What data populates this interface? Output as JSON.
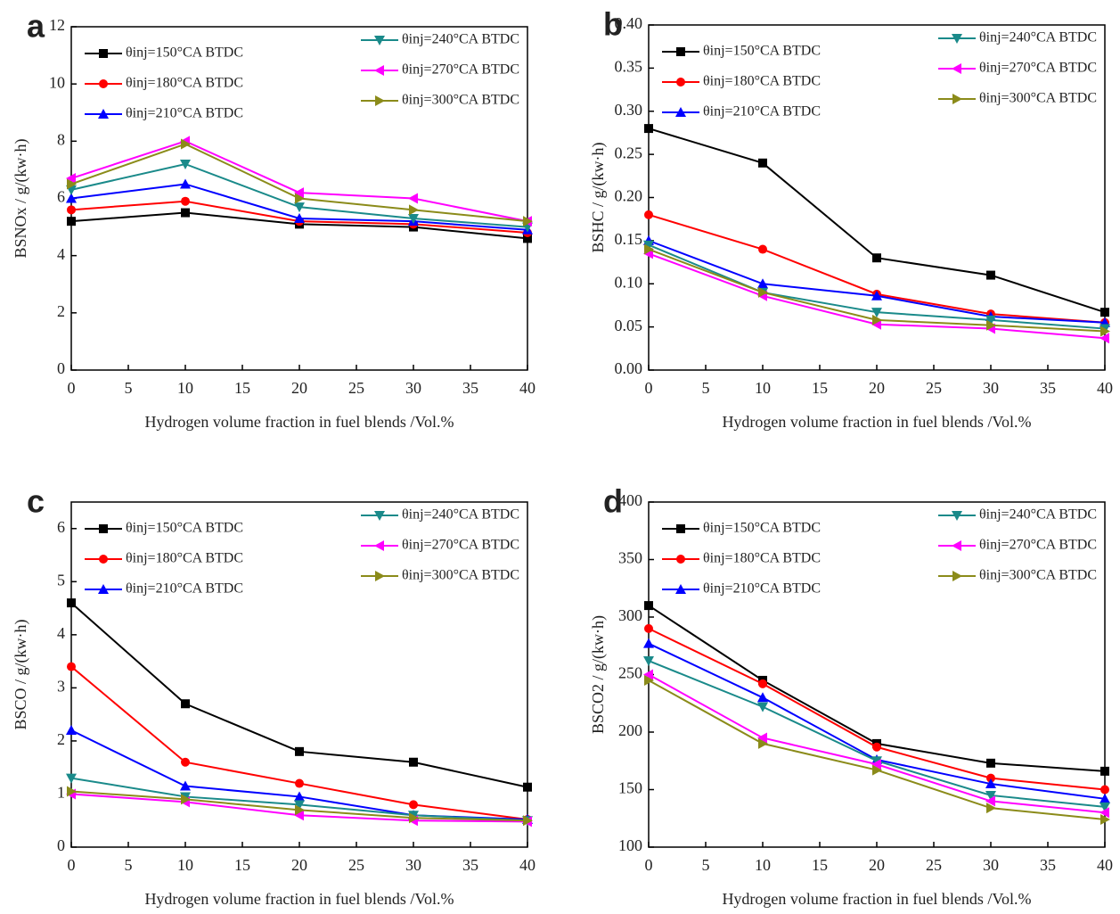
{
  "chart_data": [
    {
      "type": "line",
      "label": "a",
      "ylabel": "BSNOx / g/(kw·h)",
      "xlabel": "Hydrogen volume fraction in fuel blends /Vol.%",
      "x": [
        0,
        10,
        20,
        30,
        40
      ],
      "xlim": [
        0,
        40
      ],
      "xticks": [
        0,
        5,
        10,
        15,
        20,
        25,
        30,
        35,
        40
      ],
      "ylim": [
        0,
        12
      ],
      "yticks": [
        0,
        2,
        4,
        6,
        8,
        10,
        12
      ],
      "series": [
        {
          "name": "θinj=150°CA BTDC",
          "color": "#000000",
          "marker": "square",
          "values": [
            5.2,
            5.5,
            5.1,
            5.0,
            4.6
          ]
        },
        {
          "name": "θinj=180°CA BTDC",
          "color": "#ff0000",
          "marker": "circle",
          "values": [
            5.6,
            5.9,
            5.2,
            5.1,
            4.8
          ]
        },
        {
          "name": "θinj=210°CA BTDC",
          "color": "#0000ff",
          "marker": "up",
          "values": [
            6.0,
            6.5,
            5.3,
            5.2,
            4.9
          ]
        },
        {
          "name": "θinj=240°CA BTDC",
          "color": "#1a8a8a",
          "marker": "down",
          "values": [
            6.3,
            7.2,
            5.7,
            5.3,
            5.0
          ]
        },
        {
          "name": "θinj=270°CA BTDC",
          "color": "#ff00ff",
          "marker": "left",
          "values": [
            6.7,
            8.0,
            6.2,
            6.0,
            5.2
          ]
        },
        {
          "name": "θinj=300°CA BTDC",
          "color": "#8b8b1a",
          "marker": "right",
          "values": [
            6.5,
            7.9,
            6.0,
            5.6,
            5.2
          ]
        }
      ]
    },
    {
      "type": "line",
      "label": "b",
      "ylabel": "BSHC / g/(kw·h)",
      "xlabel": "Hydrogen volume fraction in fuel blends /Vol.%",
      "x": [
        0,
        10,
        20,
        30,
        40
      ],
      "xlim": [
        0,
        40
      ],
      "xticks": [
        0,
        5,
        10,
        15,
        20,
        25,
        30,
        35,
        40
      ],
      "ylim": [
        0,
        0.4
      ],
      "yticks": [
        {
          "value": 0,
          "label": "0.00"
        },
        0.05,
        {
          "value": 0.1,
          "label": "0.10"
        },
        0.15,
        {
          "value": 0.2,
          "label": "0.20"
        },
        0.25,
        {
          "value": 0.3,
          "label": "0.30"
        },
        0.35,
        {
          "value": 0.4,
          "label": "0.40"
        }
      ],
      "series": [
        {
          "name": "θinj=150°CA BTDC",
          "color": "#000000",
          "marker": "square",
          "values": [
            0.28,
            0.24,
            0.13,
            0.11,
            0.067
          ]
        },
        {
          "name": "θinj=180°CA BTDC",
          "color": "#ff0000",
          "marker": "circle",
          "values": [
            0.18,
            0.14,
            0.088,
            0.065,
            0.055
          ]
        },
        {
          "name": "θinj=210°CA BTDC",
          "color": "#0000ff",
          "marker": "up",
          "values": [
            0.15,
            0.1,
            0.086,
            0.062,
            0.055
          ]
        },
        {
          "name": "θinj=240°CA BTDC",
          "color": "#1a8a8a",
          "marker": "down",
          "values": [
            0.145,
            0.09,
            0.067,
            0.058,
            0.048
          ]
        },
        {
          "name": "θinj=270°CA BTDC",
          "color": "#ff00ff",
          "marker": "left",
          "values": [
            0.135,
            0.086,
            0.053,
            0.048,
            0.037
          ]
        },
        {
          "name": "θinj=300°CA BTDC",
          "color": "#8b8b1a",
          "marker": "right",
          "values": [
            0.14,
            0.09,
            0.058,
            0.052,
            0.045
          ]
        }
      ]
    },
    {
      "type": "line",
      "label": "c",
      "ylabel": "BSCO / g/(kw·h)",
      "xlabel": "Hydrogen volume fraction in fuel blends /Vol.%",
      "x": [
        0,
        10,
        20,
        30,
        40
      ],
      "xlim": [
        0,
        40
      ],
      "xticks": [
        0,
        5,
        10,
        15,
        20,
        25,
        30,
        35,
        40
      ],
      "ylim": [
        0,
        6.5
      ],
      "yticks": [
        0,
        1,
        2,
        3,
        4,
        5,
        6
      ],
      "series": [
        {
          "name": "θinj=150°CA BTDC",
          "color": "#000000",
          "marker": "square",
          "values": [
            4.6,
            2.7,
            1.8,
            1.6,
            1.13
          ]
        },
        {
          "name": "θinj=180°CA BTDC",
          "color": "#ff0000",
          "marker": "circle",
          "values": [
            3.4,
            1.6,
            1.2,
            0.8,
            0.52
          ]
        },
        {
          "name": "θinj=210°CA BTDC",
          "color": "#0000ff",
          "marker": "up",
          "values": [
            2.2,
            1.15,
            0.95,
            0.6,
            0.52
          ]
        },
        {
          "name": "θinj=240°CA BTDC",
          "color": "#1a8a8a",
          "marker": "down",
          "values": [
            1.3,
            0.95,
            0.8,
            0.6,
            0.5
          ]
        },
        {
          "name": "θinj=270°CA BTDC",
          "color": "#ff00ff",
          "marker": "left",
          "values": [
            1.0,
            0.85,
            0.6,
            0.5,
            0.48
          ]
        },
        {
          "name": "θinj=300°CA BTDC",
          "color": "#8b8b1a",
          "marker": "right",
          "values": [
            1.05,
            0.9,
            0.7,
            0.55,
            0.5
          ]
        }
      ]
    },
    {
      "type": "line",
      "label": "d",
      "ylabel": "BSCO2 / g/(kw·h)",
      "xlabel": "Hydrogen volume fraction in fuel blends /Vol.%",
      "x": [
        0,
        10,
        20,
        30,
        40
      ],
      "xlim": [
        0,
        40
      ],
      "xticks": [
        0,
        5,
        10,
        15,
        20,
        25,
        30,
        35,
        40
      ],
      "ylim": [
        100,
        400
      ],
      "yticks": [
        100,
        150,
        200,
        250,
        300,
        350,
        400
      ],
      "series": [
        {
          "name": "θinj=150°CA BTDC",
          "color": "#000000",
          "marker": "square",
          "values": [
            310,
            245,
            190,
            173,
            166
          ]
        },
        {
          "name": "θinj=180°CA BTDC",
          "color": "#ff0000",
          "marker": "circle",
          "values": [
            290,
            242,
            187,
            160,
            150
          ]
        },
        {
          "name": "θinj=210°CA BTDC",
          "color": "#0000ff",
          "marker": "up",
          "values": [
            277,
            230,
            176,
            155,
            142
          ]
        },
        {
          "name": "θinj=240°CA BTDC",
          "color": "#1a8a8a",
          "marker": "down",
          "values": [
            262,
            222,
            175,
            145,
            135
          ]
        },
        {
          "name": "θinj=270°CA BTDC",
          "color": "#ff00ff",
          "marker": "left",
          "values": [
            250,
            195,
            172,
            140,
            130
          ]
        },
        {
          "name": "θinj=300°CA BTDC",
          "color": "#8b8b1a",
          "marker": "right",
          "values": [
            245,
            190,
            167,
            134,
            124
          ]
        }
      ]
    }
  ]
}
